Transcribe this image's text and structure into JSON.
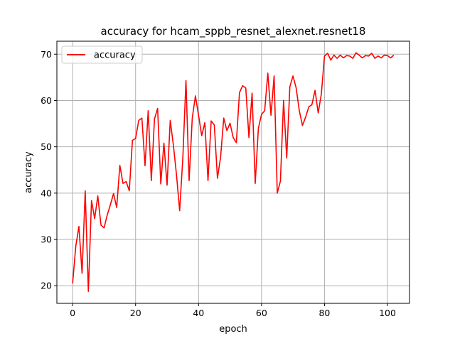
{
  "chart_data": {
    "type": "line",
    "title": "accuracy for hcam_sppb_resnet_alexnet.resnet18",
    "xlabel": "epoch",
    "ylabel": "accuracy",
    "xlim": [
      -5,
      107
    ],
    "ylim": [
      16.2,
      72.8
    ],
    "xticks": [
      0,
      20,
      40,
      60,
      80,
      100
    ],
    "yticks": [
      20,
      30,
      40,
      50,
      60,
      70
    ],
    "grid": true,
    "legend_position": "top-left",
    "series": [
      {
        "name": "accuracy",
        "color": "#ff0000",
        "x": [
          0,
          1,
          2,
          3,
          4,
          5,
          6,
          7,
          8,
          9,
          10,
          11,
          12,
          13,
          14,
          15,
          16,
          17,
          18,
          19,
          20,
          21,
          22,
          23,
          24,
          25,
          26,
          27,
          28,
          29,
          30,
          31,
          32,
          33,
          34,
          35,
          36,
          37,
          38,
          39,
          40,
          41,
          42,
          43,
          44,
          45,
          46,
          47,
          48,
          49,
          50,
          51,
          52,
          53,
          54,
          55,
          56,
          57,
          58,
          59,
          60,
          61,
          62,
          63,
          64,
          65,
          66,
          67,
          68,
          69,
          70,
          71,
          72,
          73,
          74,
          75,
          76,
          77,
          78,
          79,
          80,
          81,
          82,
          83,
          84,
          85,
          86,
          87,
          88,
          89,
          90,
          91,
          92,
          93,
          94,
          95,
          96,
          97,
          98,
          99,
          100,
          101,
          102
        ],
        "y": [
          20.5,
          28.5,
          32.8,
          22.7,
          40.5,
          18.8,
          38.4,
          34.5,
          39.4,
          33.1,
          32.5,
          35.3,
          37.5,
          39.9,
          36.9,
          46.0,
          42.1,
          42.5,
          40.5,
          51.4,
          51.8,
          55.7,
          56.2,
          45.9,
          57.8,
          42.7,
          56.0,
          58.3,
          42.0,
          50.8,
          41.7,
          55.7,
          50.4,
          43.9,
          36.2,
          47.5,
          64.3,
          42.7,
          56.2,
          61.0,
          56.8,
          52.4,
          55.2,
          42.7,
          55.6,
          54.7,
          43.2,
          47.8,
          56.2,
          53.5,
          55.1,
          52.0,
          50.9,
          61.7,
          63.2,
          62.7,
          52.0,
          61.6,
          42.1,
          54.0,
          57.0,
          57.8,
          65.9,
          56.8,
          65.3,
          40.0,
          42.6,
          60.0,
          47.6,
          63.0,
          65.3,
          62.7,
          57.8,
          54.6,
          56.4,
          58.6,
          59.1,
          62.2,
          57.3,
          61.4,
          69.6,
          70.2,
          68.7,
          69.8,
          69.1,
          69.8,
          69.2,
          69.7,
          69.6,
          69.1,
          70.3,
          69.8,
          69.2,
          69.7,
          69.6,
          70.2,
          69.1,
          69.6,
          69.2,
          69.8,
          69.7,
          69.2,
          69.8
        ]
      }
    ]
  }
}
